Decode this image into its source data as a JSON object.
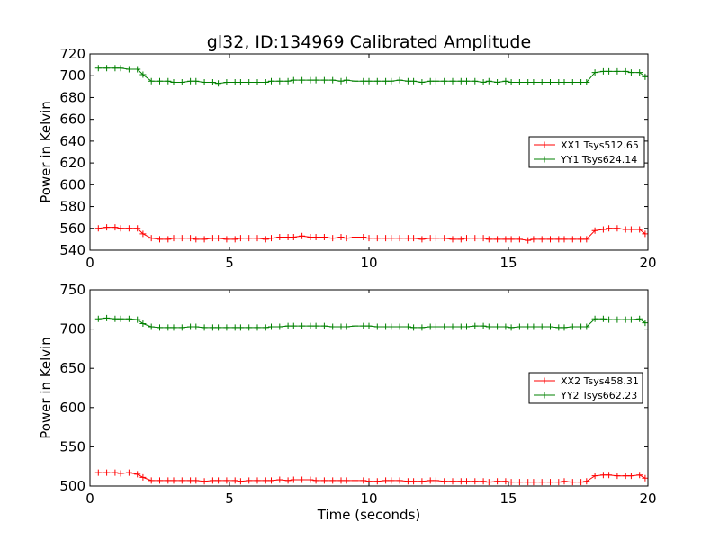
{
  "title": "gl32, ID:134969 Calibrated Amplitude",
  "chart_data": [
    {
      "type": "line",
      "title": "gl32, ID:134969 Calibrated Amplitude",
      "xlabel": "",
      "ylabel": "Power in Kelvin",
      "xlim": [
        0,
        20
      ],
      "ylim": [
        540,
        720
      ],
      "xticks": [
        "0",
        "5",
        "10",
        "15",
        "20"
      ],
      "yticks": [
        "540",
        "560",
        "580",
        "600",
        "620",
        "640",
        "660",
        "680",
        "700",
        "720"
      ],
      "grid": false,
      "legend_position": "right",
      "series": [
        {
          "name": "XX1 Tsys512.65",
          "color": "#ff0000",
          "x": [
            0.3,
            0.6,
            0.9,
            1.1,
            1.4,
            1.7,
            1.9,
            2.2,
            2.5,
            2.8,
            3.0,
            3.3,
            3.6,
            3.8,
            4.1,
            4.4,
            4.6,
            4.9,
            5.2,
            5.4,
            5.7,
            6.0,
            6.3,
            6.5,
            6.8,
            7.1,
            7.3,
            7.6,
            7.9,
            8.1,
            8.4,
            8.7,
            9.0,
            9.2,
            9.5,
            9.8,
            10.0,
            10.3,
            10.6,
            10.8,
            11.1,
            11.4,
            11.6,
            11.9,
            12.2,
            12.4,
            12.7,
            13.0,
            13.3,
            13.5,
            13.8,
            14.1,
            14.3,
            14.6,
            14.9,
            15.1,
            15.4,
            15.7,
            15.9,
            16.2,
            16.5,
            16.8,
            17.0,
            17.3,
            17.6,
            17.8,
            18.1,
            18.4,
            18.6,
            18.9,
            19.2,
            19.4,
            19.7,
            19.9
          ],
          "y": [
            560,
            561,
            561,
            560,
            560,
            560,
            555,
            551,
            550,
            550,
            551,
            551,
            551,
            550,
            550,
            551,
            551,
            550,
            550,
            551,
            551,
            551,
            550,
            551,
            552,
            552,
            552,
            553,
            552,
            552,
            552,
            551,
            552,
            551,
            552,
            552,
            551,
            551,
            551,
            551,
            551,
            551,
            551,
            550,
            551,
            551,
            551,
            550,
            550,
            551,
            551,
            551,
            550,
            550,
            550,
            550,
            550,
            549,
            550,
            550,
            550,
            550,
            550,
            550,
            550,
            550,
            558,
            559,
            560,
            560,
            559,
            559,
            559,
            555
          ]
        },
        {
          "name": "YY1 Tsys624.14",
          "color": "#008000",
          "x": [
            0.3,
            0.6,
            0.9,
            1.1,
            1.4,
            1.7,
            1.9,
            2.2,
            2.5,
            2.8,
            3.0,
            3.3,
            3.6,
            3.8,
            4.1,
            4.4,
            4.6,
            4.9,
            5.2,
            5.4,
            5.7,
            6.0,
            6.3,
            6.5,
            6.8,
            7.1,
            7.3,
            7.6,
            7.9,
            8.1,
            8.4,
            8.7,
            9.0,
            9.2,
            9.5,
            9.8,
            10.0,
            10.3,
            10.6,
            10.8,
            11.1,
            11.4,
            11.6,
            11.9,
            12.2,
            12.4,
            12.7,
            13.0,
            13.3,
            13.5,
            13.8,
            14.1,
            14.3,
            14.6,
            14.9,
            15.1,
            15.4,
            15.7,
            15.9,
            16.2,
            16.5,
            16.8,
            17.0,
            17.3,
            17.6,
            17.8,
            18.1,
            18.4,
            18.6,
            18.9,
            19.2,
            19.4,
            19.7,
            19.9
          ],
          "y": [
            707,
            707,
            707,
            707,
            706,
            706,
            701,
            695,
            695,
            695,
            694,
            694,
            695,
            695,
            694,
            694,
            693,
            694,
            694,
            694,
            694,
            694,
            694,
            695,
            695,
            695,
            696,
            696,
            696,
            696,
            696,
            696,
            695,
            696,
            695,
            695,
            695,
            695,
            695,
            695,
            696,
            695,
            695,
            694,
            695,
            695,
            695,
            695,
            695,
            695,
            695,
            694,
            695,
            694,
            695,
            694,
            694,
            694,
            694,
            694,
            694,
            694,
            694,
            694,
            694,
            694,
            703,
            704,
            704,
            704,
            704,
            703,
            703,
            699
          ]
        }
      ]
    },
    {
      "type": "line",
      "title": "",
      "xlabel": "Time (seconds)",
      "ylabel": "Power in Kelvin",
      "xlim": [
        0,
        20
      ],
      "ylim": [
        500,
        750
      ],
      "xticks": [
        "0",
        "5",
        "10",
        "15",
        "20"
      ],
      "yticks": [
        "500",
        "550",
        "600",
        "650",
        "700",
        "750"
      ],
      "grid": false,
      "legend_position": "right",
      "series": [
        {
          "name": "XX2 Tsys458.31",
          "color": "#ff0000",
          "x": [
            0.3,
            0.6,
            0.9,
            1.1,
            1.4,
            1.7,
            1.9,
            2.2,
            2.5,
            2.8,
            3.0,
            3.3,
            3.6,
            3.8,
            4.1,
            4.4,
            4.6,
            4.9,
            5.2,
            5.4,
            5.7,
            6.0,
            6.3,
            6.5,
            6.8,
            7.1,
            7.3,
            7.6,
            7.9,
            8.1,
            8.4,
            8.7,
            9.0,
            9.2,
            9.5,
            9.8,
            10.0,
            10.3,
            10.6,
            10.8,
            11.1,
            11.4,
            11.6,
            11.9,
            12.2,
            12.4,
            12.7,
            13.0,
            13.3,
            13.5,
            13.8,
            14.1,
            14.3,
            14.6,
            14.9,
            15.1,
            15.4,
            15.7,
            15.9,
            16.2,
            16.5,
            16.8,
            17.0,
            17.3,
            17.6,
            17.8,
            18.1,
            18.4,
            18.6,
            18.9,
            19.2,
            19.4,
            19.7,
            19.9
          ],
          "y": [
            517,
            517,
            517,
            516,
            517,
            515,
            511,
            507,
            507,
            507,
            507,
            507,
            507,
            507,
            506,
            507,
            507,
            507,
            507,
            506,
            507,
            507,
            507,
            507,
            508,
            507,
            508,
            508,
            508,
            507,
            507,
            507,
            507,
            507,
            507,
            507,
            506,
            506,
            507,
            507,
            507,
            506,
            506,
            506,
            507,
            507,
            506,
            506,
            506,
            506,
            506,
            506,
            505,
            506,
            506,
            505,
            505,
            505,
            505,
            505,
            505,
            505,
            506,
            505,
            505,
            506,
            513,
            514,
            514,
            513,
            513,
            513,
            514,
            510
          ]
        },
        {
          "name": "YY2 Tsys662.23",
          "color": "#008000",
          "x": [
            0.3,
            0.6,
            0.9,
            1.1,
            1.4,
            1.7,
            1.9,
            2.2,
            2.5,
            2.8,
            3.0,
            3.3,
            3.6,
            3.8,
            4.1,
            4.4,
            4.6,
            4.9,
            5.2,
            5.4,
            5.7,
            6.0,
            6.3,
            6.5,
            6.8,
            7.1,
            7.3,
            7.6,
            7.9,
            8.1,
            8.4,
            8.7,
            9.0,
            9.2,
            9.5,
            9.8,
            10.0,
            10.3,
            10.6,
            10.8,
            11.1,
            11.4,
            11.6,
            11.9,
            12.2,
            12.4,
            12.7,
            13.0,
            13.3,
            13.5,
            13.8,
            14.1,
            14.3,
            14.6,
            14.9,
            15.1,
            15.4,
            15.7,
            15.9,
            16.2,
            16.5,
            16.8,
            17.0,
            17.3,
            17.6,
            17.8,
            18.1,
            18.4,
            18.6,
            18.9,
            19.2,
            19.4,
            19.7,
            19.9
          ],
          "y": [
            713,
            714,
            713,
            713,
            713,
            712,
            707,
            703,
            702,
            702,
            702,
            702,
            703,
            703,
            702,
            702,
            702,
            702,
            702,
            702,
            702,
            702,
            702,
            703,
            703,
            704,
            704,
            704,
            704,
            704,
            704,
            703,
            703,
            703,
            704,
            704,
            704,
            703,
            703,
            703,
            703,
            703,
            702,
            702,
            703,
            703,
            703,
            703,
            703,
            703,
            704,
            704,
            703,
            703,
            703,
            702,
            703,
            703,
            703,
            703,
            703,
            702,
            702,
            703,
            703,
            703,
            713,
            713,
            712,
            712,
            712,
            712,
            713,
            708
          ]
        }
      ]
    }
  ]
}
